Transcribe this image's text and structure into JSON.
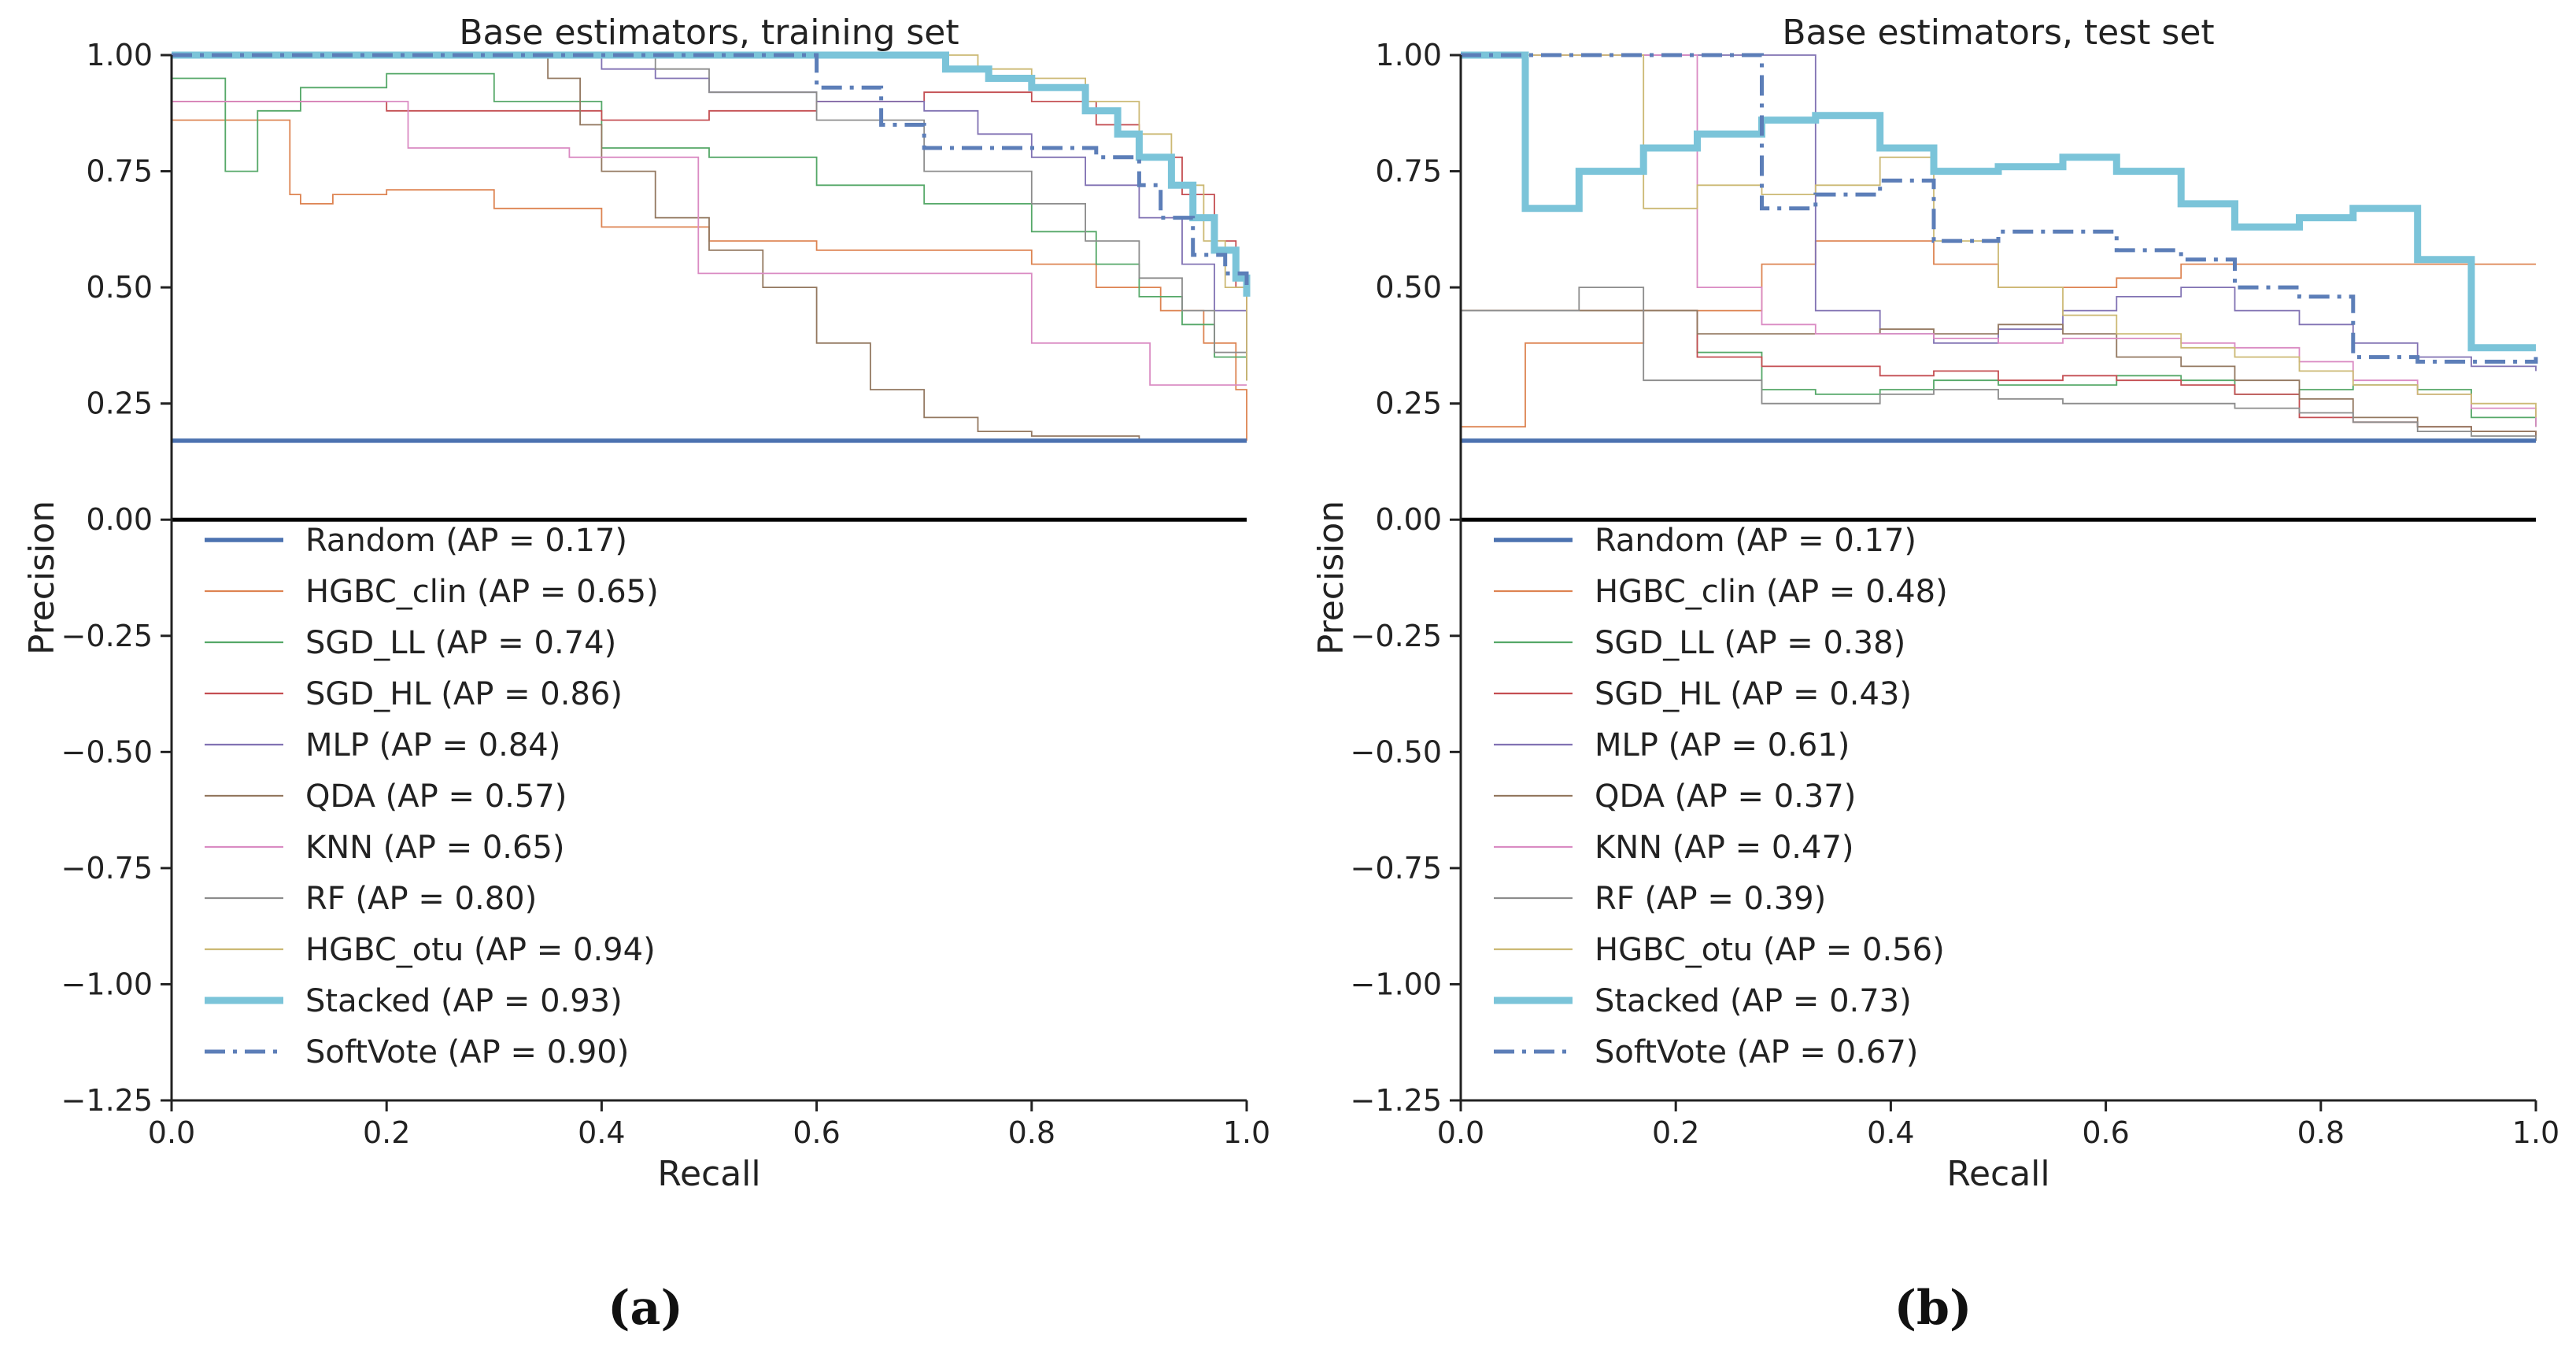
{
  "chart_data": [
    {
      "type": "line",
      "title": "Base estimators, training set",
      "xlabel": "Recall",
      "ylabel": "Precision",
      "xlim": [
        0.0,
        1.0
      ],
      "ylim": [
        -1.25,
        1.0
      ],
      "xticks": [
        "0.0",
        "0.2",
        "0.4",
        "0.6",
        "0.8",
        "1.0"
      ],
      "yticks": [
        "1.00",
        "0.75",
        "0.50",
        "0.25",
        "0.00",
        "−0.25",
        "−0.50",
        "−0.75",
        "−1.00",
        "−1.25"
      ],
      "caption": "(a)",
      "legend": "lower-left",
      "series": [
        {
          "name": "Random",
          "label": "Random (AP = 0.17)",
          "color": "#4C72B0",
          "style": "random",
          "x": [
            0,
            1
          ],
          "y": [
            0.17,
            0.17
          ]
        },
        {
          "name": "HGBC_clin",
          "label": "HGBC_clin (AP = 0.65)",
          "color": "#DD8452",
          "style": "thin",
          "x": [
            0.0,
            0.1,
            0.11,
            0.12,
            0.15,
            0.2,
            0.3,
            0.4,
            0.5,
            0.6,
            0.7,
            0.8,
            0.86,
            0.92,
            0.96,
            0.99,
            1.0
          ],
          "y": [
            0.86,
            0.86,
            0.7,
            0.68,
            0.7,
            0.71,
            0.67,
            0.63,
            0.6,
            0.58,
            0.58,
            0.55,
            0.5,
            0.45,
            0.38,
            0.28,
            0.17
          ]
        },
        {
          "name": "SGD_LL",
          "label": "SGD_LL (AP = 0.74)",
          "color": "#55A868",
          "style": "thin",
          "x": [
            0.0,
            0.04,
            0.05,
            0.08,
            0.12,
            0.2,
            0.3,
            0.4,
            0.5,
            0.6,
            0.7,
            0.8,
            0.86,
            0.9,
            0.94,
            0.97,
            1.0
          ],
          "y": [
            0.95,
            0.95,
            0.75,
            0.88,
            0.93,
            0.96,
            0.9,
            0.8,
            0.78,
            0.72,
            0.68,
            0.62,
            0.55,
            0.48,
            0.42,
            0.35,
            0.3
          ]
        },
        {
          "name": "SGD_HL",
          "label": "SGD_HL (AP = 0.86)",
          "color": "#C44E52",
          "style": "thin",
          "x": [
            0.0,
            0.1,
            0.2,
            0.3,
            0.4,
            0.5,
            0.6,
            0.7,
            0.8,
            0.86,
            0.9,
            0.94,
            0.97,
            0.99,
            1.0
          ],
          "y": [
            0.9,
            0.9,
            0.88,
            0.88,
            0.86,
            0.88,
            0.9,
            0.92,
            0.9,
            0.85,
            0.78,
            0.7,
            0.6,
            0.5,
            0.3
          ]
        },
        {
          "name": "MLP",
          "label": "MLP (AP = 0.84)",
          "color": "#8172B3",
          "style": "thin",
          "x": [
            0.0,
            0.3,
            0.4,
            0.45,
            0.5,
            0.6,
            0.7,
            0.75,
            0.8,
            0.85,
            0.9,
            0.94,
            0.97,
            1.0
          ],
          "y": [
            1.0,
            1.0,
            0.97,
            0.95,
            0.92,
            0.9,
            0.88,
            0.83,
            0.78,
            0.72,
            0.65,
            0.55,
            0.45,
            0.32
          ]
        },
        {
          "name": "QDA",
          "label": "QDA (AP = 0.57)",
          "color": "#937860",
          "style": "thin",
          "x": [
            0.0,
            0.3,
            0.35,
            0.38,
            0.4,
            0.45,
            0.5,
            0.55,
            0.6,
            0.65,
            0.7,
            0.75,
            0.8,
            0.9,
            1.0
          ],
          "y": [
            1.0,
            1.0,
            0.95,
            0.85,
            0.75,
            0.65,
            0.58,
            0.5,
            0.38,
            0.28,
            0.22,
            0.19,
            0.18,
            0.17,
            0.17
          ]
        },
        {
          "name": "KNN",
          "label": "KNN (AP = 0.65)",
          "color": "#DA8BC3",
          "style": "thin",
          "x": [
            0.0,
            0.18,
            0.22,
            0.3,
            0.37,
            0.45,
            0.49,
            0.6,
            0.7,
            0.78,
            0.8,
            0.9,
            0.91,
            0.95,
            1.0
          ],
          "y": [
            0.9,
            0.9,
            0.8,
            0.8,
            0.78,
            0.78,
            0.53,
            0.53,
            0.53,
            0.53,
            0.38,
            0.38,
            0.29,
            0.29,
            0.29
          ]
        },
        {
          "name": "RF",
          "label": "RF (AP = 0.80)",
          "color": "#8C8C8C",
          "style": "thin",
          "x": [
            0.0,
            0.4,
            0.45,
            0.5,
            0.6,
            0.7,
            0.8,
            0.85,
            0.9,
            0.94,
            0.97,
            1.0
          ],
          "y": [
            1.0,
            1.0,
            0.97,
            0.92,
            0.86,
            0.75,
            0.68,
            0.6,
            0.52,
            0.45,
            0.36,
            0.3
          ]
        },
        {
          "name": "HGBC_otu",
          "label": "HGBC_otu (AP = 0.94)",
          "color": "#CCB974",
          "style": "thin",
          "x": [
            0.0,
            0.55,
            0.6,
            0.7,
            0.75,
            0.8,
            0.85,
            0.9,
            0.93,
            0.96,
            0.98,
            1.0
          ],
          "y": [
            1.0,
            1.0,
            1.0,
            1.0,
            0.97,
            0.95,
            0.9,
            0.83,
            0.72,
            0.6,
            0.5,
            0.3
          ]
        },
        {
          "name": "Stacked",
          "label": "Stacked (AP = 0.93)",
          "color": "#7BC4D9",
          "style": "thick",
          "x": [
            0.0,
            0.65,
            0.72,
            0.76,
            0.8,
            0.85,
            0.88,
            0.9,
            0.93,
            0.95,
            0.97,
            0.99,
            1.0
          ],
          "y": [
            1.0,
            1.0,
            0.97,
            0.95,
            0.93,
            0.88,
            0.83,
            0.78,
            0.72,
            0.65,
            0.58,
            0.52,
            0.48
          ]
        },
        {
          "name": "SoftVote",
          "label": "SoftVote (AP = 0.90)",
          "color": "#5C7EB8",
          "style": "dashdot",
          "x": [
            0.0,
            0.56,
            0.6,
            0.66,
            0.7,
            0.8,
            0.86,
            0.9,
            0.92,
            0.95,
            0.98,
            1.0
          ],
          "y": [
            1.0,
            1.0,
            0.93,
            0.85,
            0.8,
            0.8,
            0.78,
            0.72,
            0.65,
            0.57,
            0.53,
            0.5
          ]
        }
      ]
    },
    {
      "type": "line",
      "title": "Base estimators, test set",
      "xlabel": "Recall",
      "ylabel": "Precision",
      "xlim": [
        0.0,
        1.0
      ],
      "ylim": [
        -1.25,
        1.0
      ],
      "xticks": [
        "0.0",
        "0.2",
        "0.4",
        "0.6",
        "0.8",
        "1.0"
      ],
      "yticks": [
        "1.00",
        "0.75",
        "0.50",
        "0.25",
        "0.00",
        "−0.25",
        "−0.50",
        "−0.75",
        "−1.00",
        "−1.25"
      ],
      "caption": "(b)",
      "legend": "lower-left",
      "series": [
        {
          "name": "Random",
          "label": "Random (AP = 0.17)",
          "color": "#4C72B0",
          "style": "random",
          "x": [
            0,
            1
          ],
          "y": [
            0.17,
            0.17
          ]
        },
        {
          "name": "HGBC_clin",
          "label": "HGBC_clin (AP = 0.48)",
          "color": "#DD8452",
          "style": "thin",
          "x": [
            0.0,
            0.06,
            0.17,
            0.28,
            0.33,
            0.39,
            0.44,
            0.5,
            0.56,
            0.61,
            0.67,
            0.72,
            0.83,
            0.89,
            0.94,
            1.0
          ],
          "y": [
            0.2,
            0.38,
            0.45,
            0.55,
            0.6,
            0.6,
            0.55,
            0.5,
            0.5,
            0.52,
            0.55,
            0.55,
            0.55,
            0.55,
            0.55,
            0.55
          ]
        },
        {
          "name": "SGD_LL",
          "label": "SGD_LL (AP = 0.38)",
          "color": "#55A868",
          "style": "thin",
          "x": [
            0.0,
            0.11,
            0.17,
            0.22,
            0.28,
            0.33,
            0.39,
            0.44,
            0.5,
            0.56,
            0.61,
            0.67,
            0.72,
            0.78,
            0.83,
            0.89,
            0.94,
            1.0
          ],
          "y": [
            0.45,
            0.45,
            0.45,
            0.36,
            0.28,
            0.27,
            0.28,
            0.3,
            0.29,
            0.29,
            0.31,
            0.3,
            0.27,
            0.28,
            0.29,
            0.28,
            0.22,
            0.2
          ]
        },
        {
          "name": "SGD_HL",
          "label": "SGD_HL (AP = 0.43)",
          "color": "#C44E52",
          "style": "thin",
          "x": [
            0.0,
            0.17,
            0.22,
            0.28,
            0.33,
            0.39,
            0.44,
            0.5,
            0.56,
            0.61,
            0.67,
            0.72,
            0.78,
            0.83,
            0.89,
            0.94,
            1.0
          ],
          "y": [
            0.45,
            0.45,
            0.35,
            0.33,
            0.33,
            0.31,
            0.32,
            0.3,
            0.31,
            0.3,
            0.29,
            0.27,
            0.22,
            0.21,
            0.2,
            0.19,
            0.18
          ]
        },
        {
          "name": "MLP",
          "label": "MLP (AP = 0.61)",
          "color": "#8172B3",
          "style": "thin",
          "x": [
            0.0,
            0.28,
            0.33,
            0.39,
            0.44,
            0.5,
            0.56,
            0.61,
            0.67,
            0.72,
            0.78,
            0.83,
            0.89,
            0.94,
            1.0
          ],
          "y": [
            1.0,
            1.0,
            0.45,
            0.4,
            0.38,
            0.41,
            0.45,
            0.48,
            0.5,
            0.45,
            0.42,
            0.38,
            0.35,
            0.33,
            0.32
          ]
        },
        {
          "name": "QDA",
          "label": "QDA (AP = 0.37)",
          "color": "#937860",
          "style": "thin",
          "x": [
            0.0,
            0.17,
            0.22,
            0.28,
            0.33,
            0.39,
            0.44,
            0.5,
            0.56,
            0.61,
            0.67,
            0.72,
            0.78,
            0.83,
            0.89,
            0.94,
            1.0
          ],
          "y": [
            0.45,
            0.45,
            0.4,
            0.4,
            0.4,
            0.41,
            0.4,
            0.42,
            0.4,
            0.35,
            0.33,
            0.3,
            0.26,
            0.22,
            0.2,
            0.19,
            0.17
          ]
        },
        {
          "name": "KNN",
          "label": "KNN (AP = 0.47)",
          "color": "#DA8BC3",
          "style": "thin",
          "x": [
            0.0,
            0.17,
            0.22,
            0.28,
            0.33,
            0.39,
            0.44,
            0.5,
            0.56,
            0.61,
            0.67,
            0.72,
            0.78,
            0.83,
            0.89,
            0.94,
            1.0
          ],
          "y": [
            1.0,
            1.0,
            0.5,
            0.42,
            0.4,
            0.4,
            0.39,
            0.38,
            0.39,
            0.39,
            0.38,
            0.37,
            0.34,
            0.3,
            0.27,
            0.24,
            0.2
          ]
        },
        {
          "name": "RF",
          "label": "RF (AP = 0.39)",
          "color": "#8C8C8C",
          "style": "thin",
          "x": [
            0.0,
            0.11,
            0.17,
            0.22,
            0.28,
            0.33,
            0.39,
            0.44,
            0.5,
            0.56,
            0.61,
            0.67,
            0.72,
            0.78,
            0.83,
            0.89,
            0.94,
            1.0
          ],
          "y": [
            0.45,
            0.5,
            0.3,
            0.3,
            0.25,
            0.25,
            0.27,
            0.28,
            0.26,
            0.25,
            0.25,
            0.25,
            0.24,
            0.23,
            0.21,
            0.19,
            0.18,
            0.17
          ]
        },
        {
          "name": "HGBC_otu",
          "label": "HGBC_otu (AP = 0.56)",
          "color": "#CCB974",
          "style": "thin",
          "x": [
            0.0,
            0.11,
            0.17,
            0.22,
            0.28,
            0.33,
            0.39,
            0.44,
            0.5,
            0.56,
            0.61,
            0.67,
            0.72,
            0.78,
            0.83,
            0.89,
            0.94,
            1.0
          ],
          "y": [
            1.0,
            1.0,
            0.67,
            0.72,
            0.7,
            0.72,
            0.78,
            0.6,
            0.5,
            0.44,
            0.4,
            0.37,
            0.35,
            0.32,
            0.29,
            0.27,
            0.25,
            0.22
          ]
        },
        {
          "name": "Stacked",
          "label": "Stacked (AP = 0.73)",
          "color": "#7BC4D9",
          "style": "thick",
          "x": [
            0.0,
            0.06,
            0.11,
            0.17,
            0.22,
            0.28,
            0.33,
            0.39,
            0.44,
            0.5,
            0.56,
            0.61,
            0.67,
            0.72,
            0.78,
            0.83,
            0.89,
            0.94,
            1.0
          ],
          "y": [
            1.0,
            0.67,
            0.75,
            0.8,
            0.83,
            0.86,
            0.87,
            0.8,
            0.75,
            0.76,
            0.78,
            0.75,
            0.68,
            0.63,
            0.65,
            0.67,
            0.56,
            0.37,
            0.37
          ]
        },
        {
          "name": "SoftVote",
          "label": "SoftVote (AP = 0.67)",
          "color": "#5C7EB8",
          "style": "dashdot",
          "x": [
            0.0,
            0.28,
            0.33,
            0.39,
            0.44,
            0.5,
            0.56,
            0.61,
            0.67,
            0.72,
            0.78,
            0.83,
            0.89,
            0.94,
            1.0
          ],
          "y": [
            1.0,
            0.67,
            0.7,
            0.73,
            0.6,
            0.62,
            0.62,
            0.58,
            0.56,
            0.5,
            0.48,
            0.35,
            0.34,
            0.34,
            0.35
          ]
        }
      ]
    }
  ]
}
